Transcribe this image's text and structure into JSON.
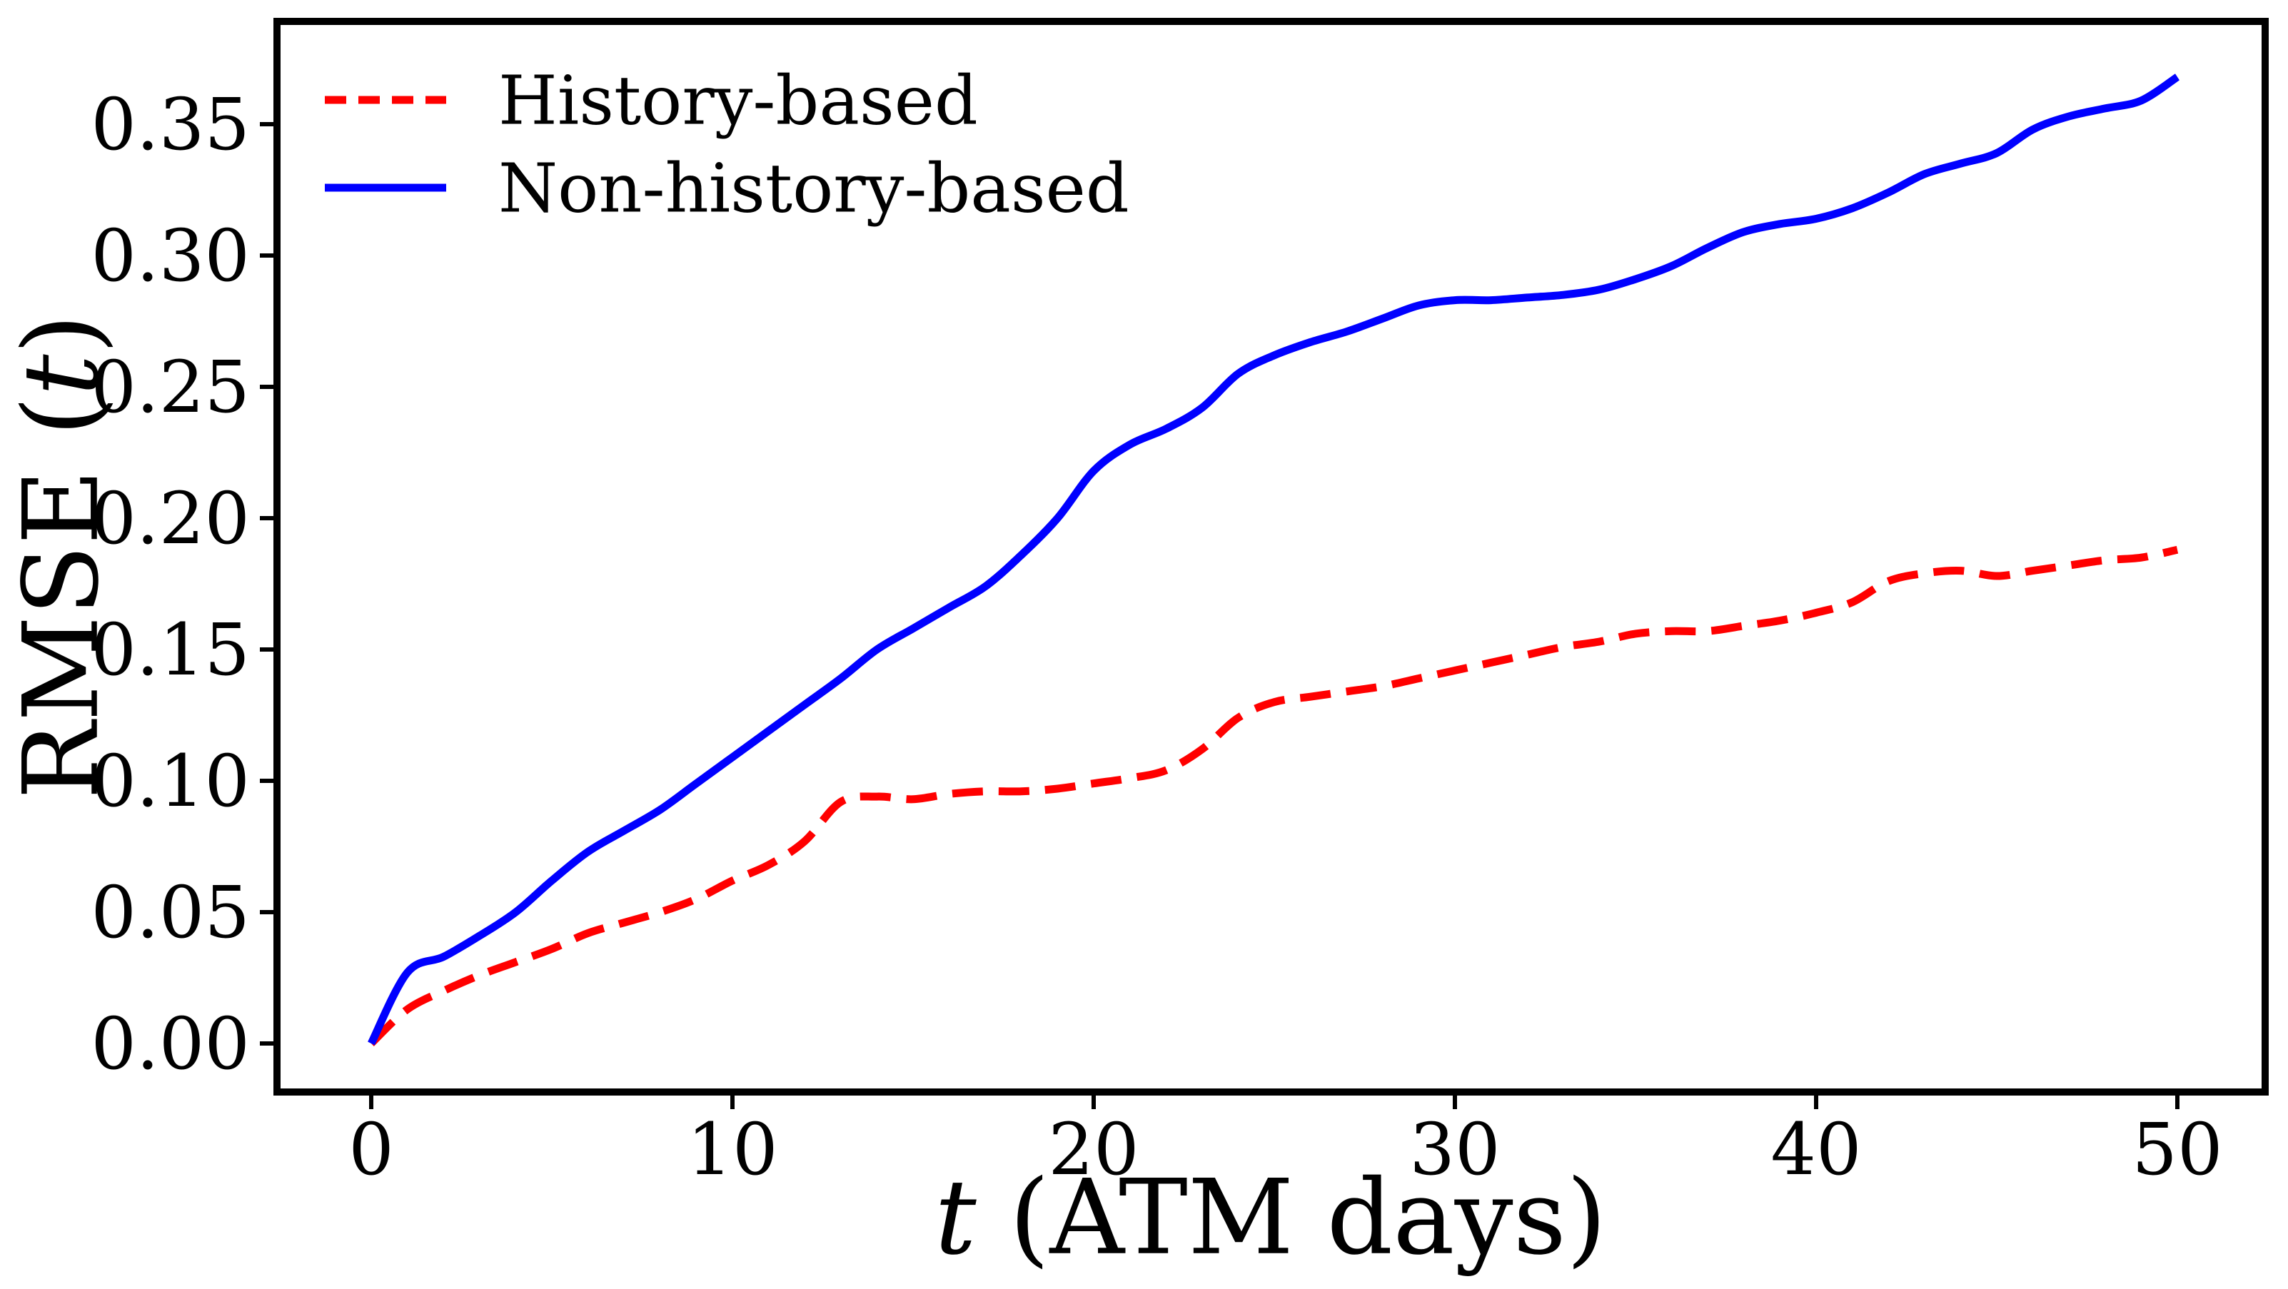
{
  "figure": {
    "background_color": "#ffffff",
    "axis_color": "#000000",
    "ylabel": {
      "prefix": "RMSE (",
      "italic": "t",
      "suffix": ")"
    },
    "xlabel": {
      "italic": "t",
      "suffix": " (ATM days)"
    },
    "legend": [
      {
        "label": "History-based",
        "color": "#ff0000",
        "linestyle": "dashed"
      },
      {
        "label": "Non-history-based",
        "color": "#0000ff",
        "linestyle": "solid"
      }
    ]
  },
  "chart_data": {
    "type": "line",
    "title": "",
    "xlabel": "t (ATM days)",
    "ylabel": "RMSE (t)",
    "xlim": [
      -2.6,
      52.4
    ],
    "ylim": [
      -0.018,
      0.389
    ],
    "grid": false,
    "legend_position": "upper left",
    "xticks": {
      "values": [
        0,
        10,
        20,
        30,
        40,
        50
      ],
      "labels": [
        "0",
        "10",
        "20",
        "30",
        "40",
        "50"
      ]
    },
    "yticks": {
      "values": [
        0.0,
        0.05,
        0.1,
        0.15,
        0.2,
        0.25,
        0.3,
        0.35
      ],
      "labels": [
        "0.00",
        "0.05",
        "0.10",
        "0.15",
        "0.20",
        "0.25",
        "0.30",
        "0.35"
      ]
    },
    "x": [
      0,
      1,
      2,
      3,
      4,
      5,
      6,
      7,
      8,
      9,
      10,
      11,
      12,
      13,
      14,
      15,
      16,
      17,
      18,
      19,
      20,
      21,
      22,
      23,
      24,
      25,
      26,
      27,
      28,
      29,
      30,
      31,
      32,
      33,
      34,
      35,
      36,
      37,
      38,
      39,
      40,
      41,
      42,
      43,
      44,
      45,
      46,
      47,
      48,
      49,
      50
    ],
    "series": [
      {
        "name": "History-based",
        "color": "#ff0000",
        "style": "dashed",
        "values": [
          0.0,
          0.013,
          0.02,
          0.026,
          0.031,
          0.036,
          0.042,
          0.046,
          0.05,
          0.055,
          0.062,
          0.068,
          0.077,
          0.092,
          0.094,
          0.093,
          0.095,
          0.096,
          0.096,
          0.097,
          0.099,
          0.101,
          0.104,
          0.112,
          0.124,
          0.13,
          0.132,
          0.134,
          0.136,
          0.139,
          0.142,
          0.145,
          0.148,
          0.151,
          0.153,
          0.156,
          0.157,
          0.157,
          0.159,
          0.161,
          0.164,
          0.168,
          0.176,
          0.179,
          0.18,
          0.178,
          0.18,
          0.182,
          0.184,
          0.185,
          0.188
        ]
      },
      {
        "name": "Non-history-based",
        "color": "#0000ff",
        "style": "solid",
        "values": [
          0.0,
          0.027,
          0.033,
          0.041,
          0.05,
          0.062,
          0.073,
          0.081,
          0.089,
          0.099,
          0.109,
          0.119,
          0.129,
          0.139,
          0.15,
          0.158,
          0.166,
          0.174,
          0.186,
          0.2,
          0.218,
          0.228,
          0.234,
          0.242,
          0.255,
          0.262,
          0.267,
          0.271,
          0.276,
          0.281,
          0.283,
          0.283,
          0.284,
          0.285,
          0.287,
          0.291,
          0.296,
          0.303,
          0.309,
          0.312,
          0.314,
          0.318,
          0.324,
          0.331,
          0.335,
          0.339,
          0.348,
          0.353,
          0.356,
          0.359,
          0.368
        ]
      }
    ]
  }
}
